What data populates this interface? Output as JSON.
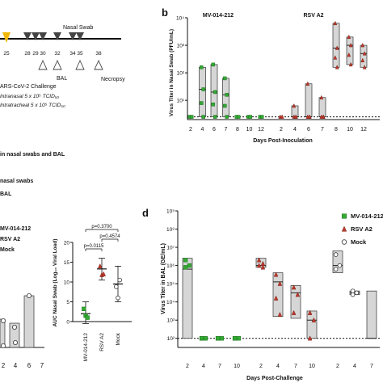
{
  "timeline": {
    "days": [
      "25",
      "28",
      "29",
      "30",
      "32",
      "34",
      "35",
      "38"
    ],
    "nasal_swab_label": "Nasal Swab",
    "bal_label": "BAL",
    "necropsy_label": "Necropsy",
    "challenge_title": "ARS-CoV-2 Challenge",
    "challenge_in": "Intranasal 5 x 10⁵ TCID₅₀",
    "challenge_it": "Intratracheal 5 x 10⁵ TCID₅₀"
  },
  "left_notes": {
    "note1": "in nasal swabs and BAL",
    "note2": "nasal swabs",
    "note3": "BAL",
    "legend1": "MV-014-212",
    "legend2": "RSV A2",
    "legend3": "Mock",
    "partial_ticks": [
      "2",
      "4",
      "6",
      "7"
    ]
  },
  "colors": {
    "mv": "#33aa33",
    "rsv": "#c0392b",
    "mock": "#ffffff",
    "box": "#d6d6d6",
    "yellow": "#f2b705",
    "arrow": "#444444"
  },
  "chart_data": [
    {
      "panel": "b",
      "type": "box-scatter",
      "ylabel": "Virus Titer in Nasal Swab (PFU/mL)",
      "xlabel": "Days Post-Inoculation",
      "y_scale": "log",
      "ylim_exp": [
        0.3,
        4
      ],
      "yticks": [
        "10⁴",
        "10³",
        "10²",
        "10¹",
        "10⁰"
      ],
      "group_labels": [
        "MV-014-212",
        "RSV A2"
      ],
      "categories": [
        "2",
        "4",
        "6",
        "7",
        "8",
        "10",
        "12"
      ],
      "lod_exp": 0.4,
      "groups": [
        {
          "name": "MV-014-212",
          "boxes": [
            {
              "day": "2",
              "lo": 0.4,
              "med": 0.4,
              "hi": 0.4
            },
            {
              "day": "4",
              "lo": 0.4,
              "med": 1.4,
              "hi": 2.2
            },
            {
              "day": "6",
              "lo": 0.4,
              "med": 1.3,
              "hi": 2.3
            },
            {
              "day": "7",
              "lo": 0.4,
              "med": 1.2,
              "hi": 1.8
            },
            {
              "day": "8",
              "lo": 0.4,
              "med": 0.4,
              "hi": 0.4
            },
            {
              "day": "10",
              "lo": 0.4,
              "med": 0.4,
              "hi": 0.4
            },
            {
              "day": "12",
              "lo": 0.4,
              "med": 0.4,
              "hi": 0.4
            }
          ]
        },
        {
          "name": "RSV A2",
          "boxes": [
            {
              "day": "2",
              "lo": 0.4,
              "med": 0.4,
              "hi": 0.4
            },
            {
              "day": "4",
              "lo": 0.4,
              "med": 0.4,
              "hi": 0.8
            },
            {
              "day": "6",
              "lo": 0.4,
              "med": 0.4,
              "hi": 1.6
            },
            {
              "day": "7",
              "lo": 0.4,
              "med": 0.4,
              "hi": 1.1
            },
            {
              "day": "8",
              "lo": 2.2,
              "med": 2.9,
              "hi": 3.8
            },
            {
              "day": "10",
              "lo": 2.3,
              "med": 3.0,
              "hi": 3.3
            },
            {
              "day": "12",
              "lo": 2.2,
              "med": 2.7,
              "hi": 3.0
            }
          ]
        }
      ]
    },
    {
      "panel": "auc",
      "type": "scatter",
      "ylabel": "AUC Nasal Swab (Log₁₀ Viral Load)",
      "ylim": [
        0,
        20
      ],
      "yticks": [
        "0",
        "5",
        "10",
        "15",
        "20"
      ],
      "categories": [
        "MV-014-212",
        "RSV A2",
        "Mock"
      ],
      "series": [
        {
          "name": "MV-014-212",
          "mean": 2.0,
          "sd_lo": -0.5,
          "sd_hi": 5.0,
          "points": [
            3.2,
            1.5,
            1.0
          ]
        },
        {
          "name": "RSV A2",
          "mean": 13.3,
          "sd_lo": 10.5,
          "sd_hi": 16.0,
          "points": [
            14.0,
            11.8,
            12.0
          ]
        },
        {
          "name": "Mock",
          "mean": 9.5,
          "sd_lo": 5.0,
          "sd_hi": 14.0,
          "points": [
            8.8,
            6.0,
            10.5
          ]
        }
      ],
      "pvalues": [
        "p=0.3700",
        "p=0.4574",
        "p=0.0115"
      ]
    },
    {
      "panel": "d",
      "type": "box-scatter",
      "ylabel": "Virus Titer in BAL (GE/mL)",
      "xlabel": "Days Post-Challenge",
      "y_scale": "log",
      "ylim_exp": [
        1.5,
        9
      ],
      "yticks": [
        "10⁹",
        "10⁸",
        "10⁷",
        "10⁶",
        "10⁵",
        "10⁴",
        "10³",
        "10²"
      ],
      "categories": [
        "2",
        "4",
        "7",
        "10",
        "2",
        "4",
        "7",
        "10",
        "2",
        "4",
        "7"
      ],
      "lod_exp": 2,
      "legend": [
        "MV-014-212",
        "RSV A2",
        "Mock"
      ],
      "boxes": [
        {
          "group": "MV-014-212",
          "day": "2",
          "lo": 2,
          "med": 5.8,
          "hi": 6.4,
          "points": [
            6.3,
            6.0,
            5.9
          ]
        },
        {
          "group": "MV-014-212",
          "day": "4",
          "lo": 2,
          "med": 2,
          "hi": 2,
          "points": [
            2,
            2,
            2
          ]
        },
        {
          "group": "MV-014-212",
          "day": "7",
          "lo": 2,
          "med": 2,
          "hi": 2,
          "points": [
            2,
            2,
            2
          ]
        },
        {
          "group": "MV-014-212",
          "day": "10",
          "lo": 2,
          "med": 2,
          "hi": 2,
          "points": [
            2,
            2,
            2
          ]
        },
        {
          "group": "RSV A2",
          "day": "2",
          "lo": 5.9,
          "med": 6.0,
          "hi": 6.4,
          "points": [
            6.3,
            6.1,
            6.0,
            5.9
          ]
        },
        {
          "group": "RSV A2",
          "day": "4",
          "lo": 3.2,
          "med": 5.1,
          "hi": 5.6,
          "points": [
            5.5,
            5.0,
            4.2,
            3.3
          ]
        },
        {
          "group": "RSV A2",
          "day": "7",
          "lo": 3.1,
          "med": 4.5,
          "hi": 4.9,
          "points": [
            4.8,
            4.4,
            3.4
          ]
        },
        {
          "group": "RSV A2",
          "day": "10",
          "lo": 2,
          "med": 3.0,
          "hi": 3.5,
          "points": [
            3.4,
            3.0,
            2.0
          ]
        },
        {
          "group": "Mock",
          "day": "2",
          "lo": 5.6,
          "med": 6.0,
          "hi": 6.8,
          "points": [
            6.6,
            6.0,
            5.8
          ]
        },
        {
          "group": "Mock",
          "day": "4",
          "lo": 4.4,
          "med": 4.5,
          "hi": 4.6,
          "points": [
            4.6,
            4.5,
            4.4
          ]
        },
        {
          "group": "Mock",
          "day": "7",
          "lo": 2,
          "med": 2,
          "hi": 4.6,
          "points": []
        }
      ]
    }
  ],
  "panel_labels": {
    "b": "b",
    "d": "d"
  }
}
